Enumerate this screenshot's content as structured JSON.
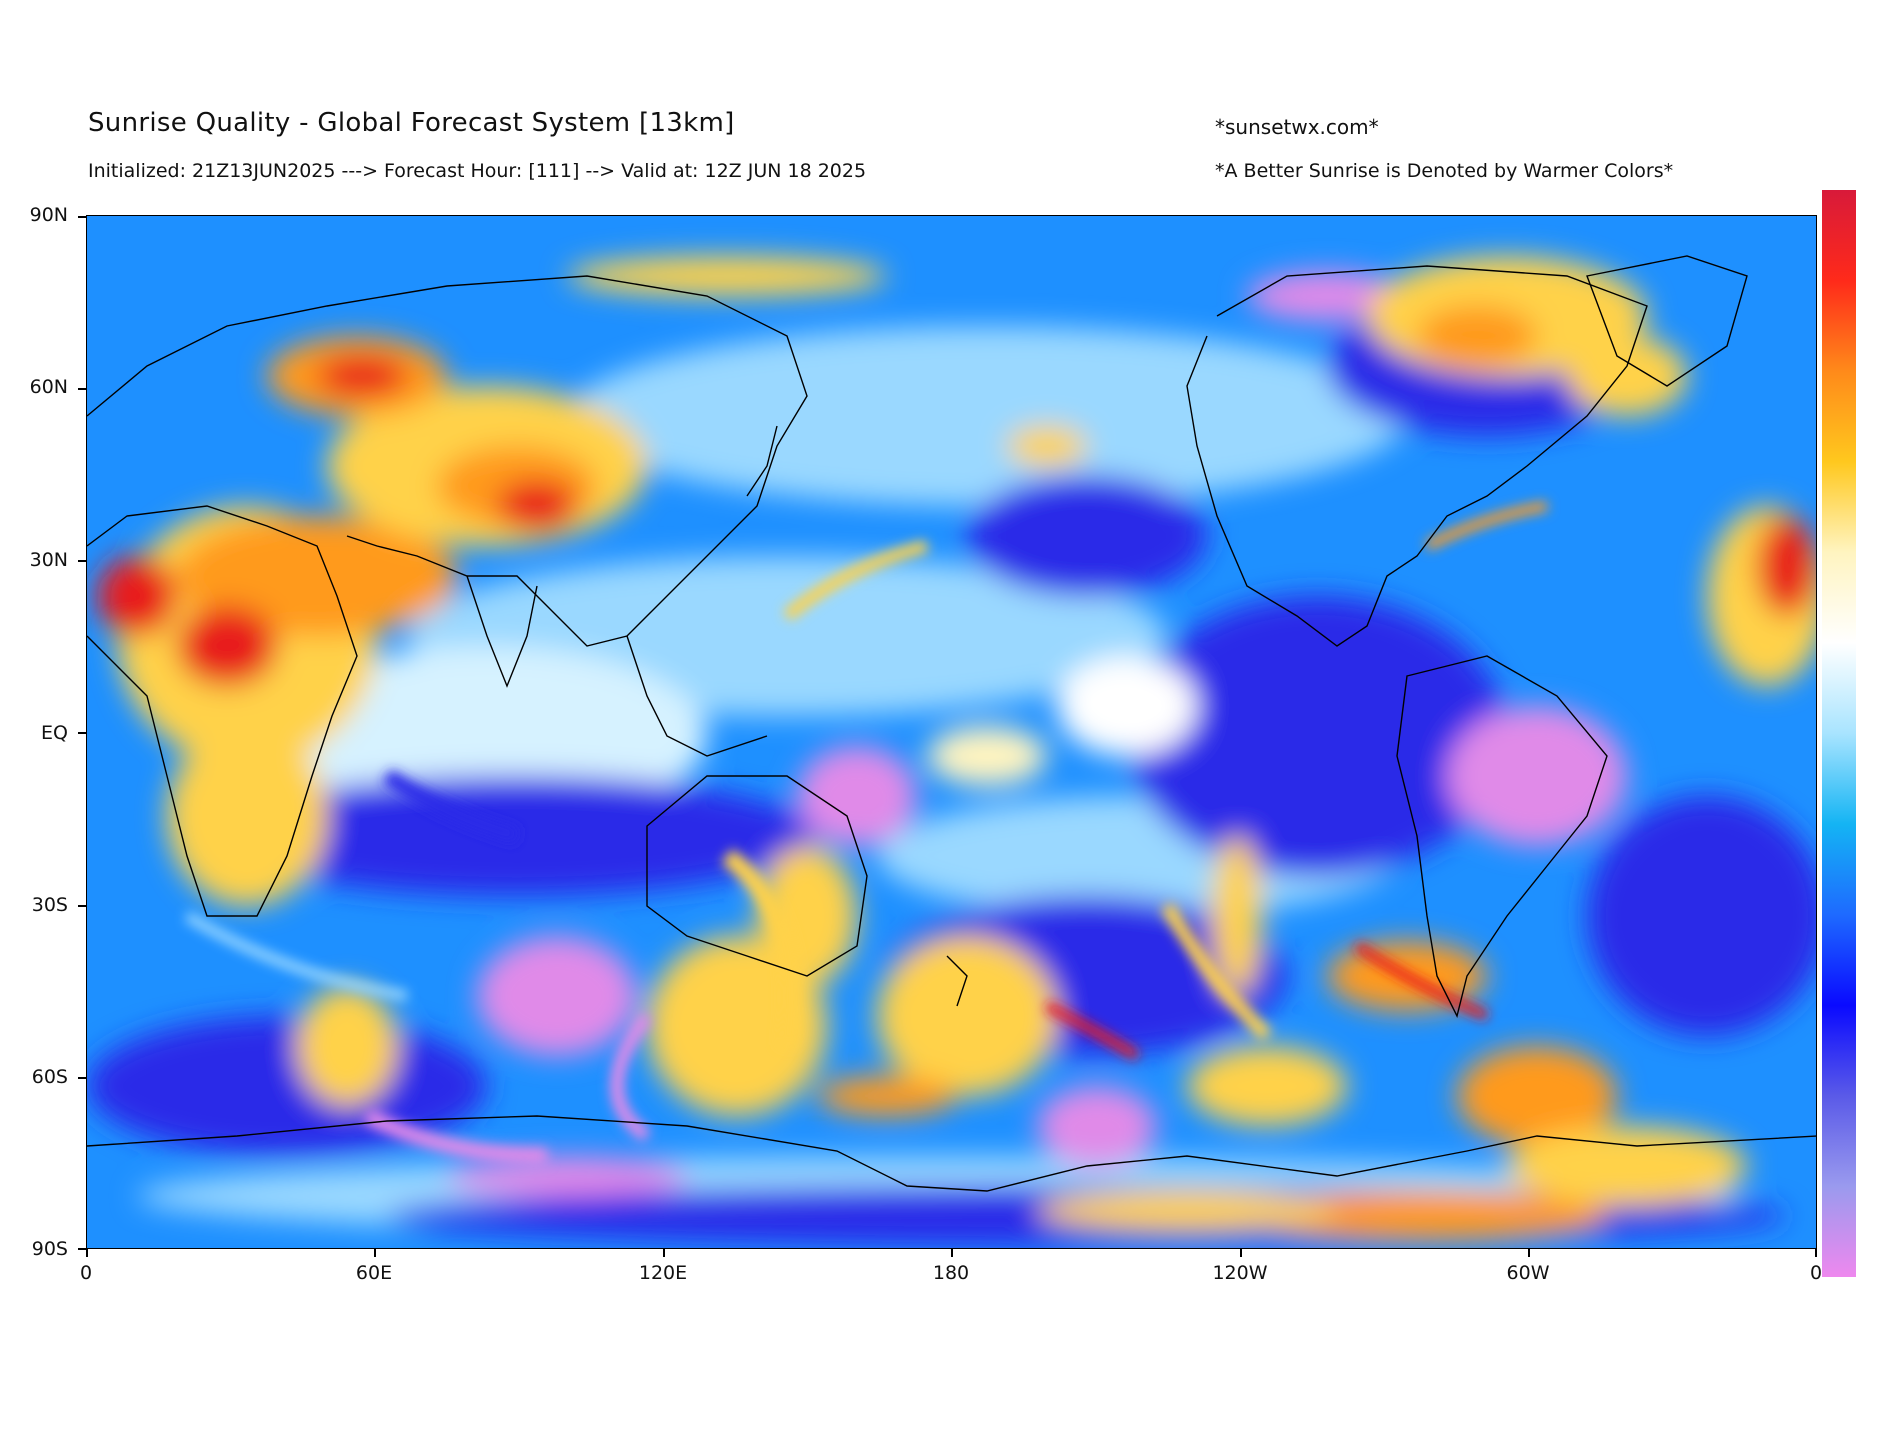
{
  "header": {
    "title": "Sunrise Quality - Global Forecast System [13km]",
    "subtitle": "Initialized: 21Z13JUN2025 ---> Forecast Hour: [111] --> Valid at: 12Z JUN 18 2025",
    "site": "*sunsetwx.com*",
    "note": "*A Better Sunrise is Denoted by Warmer Colors*"
  },
  "axes": {
    "lat_labels": [
      "90N",
      "60N",
      "30N",
      "EQ",
      "30S",
      "60S",
      "90S"
    ],
    "lon_labels": [
      "0",
      "60E",
      "120E",
      "180",
      "120W",
      "60W",
      "0"
    ]
  },
  "colors": {
    "ocean_base": "#1e90ff",
    "deep_blue": "#2a2ae8",
    "violet": "#e08ae8",
    "white": "#ffffff",
    "yellow": "#ffd24a",
    "orange": "#ff9a1e",
    "red": "#e81a1a",
    "light_blue": "#9ad8ff",
    "coastline": "#000000"
  },
  "colorbar": {
    "stops": [
      "#d81a3a",
      "#ff2a1a",
      "#ff8a1a",
      "#ffc81e",
      "#fff4c0",
      "#ffffff",
      "#a8e4ff",
      "#14b4f4",
      "#1e6aff",
      "#0a0aff",
      "#5a5ae8",
      "#9a9aee",
      "#ee88ee"
    ]
  }
}
